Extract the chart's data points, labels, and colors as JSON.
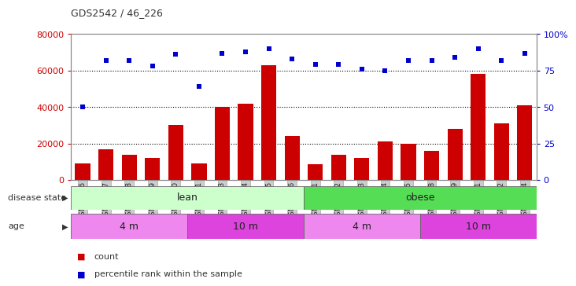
{
  "title": "GDS2542 / 46_226",
  "samples": [
    "GSM62956",
    "GSM62957",
    "GSM62958",
    "GSM62959",
    "GSM62960",
    "GSM63001",
    "GSM63003",
    "GSM63004",
    "GSM63005",
    "GSM63006",
    "GSM62951",
    "GSM62952",
    "GSM62953",
    "GSM62954",
    "GSM62955",
    "GSM63008",
    "GSM63009",
    "GSM63011",
    "GSM63012",
    "GSM63014"
  ],
  "counts": [
    9000,
    17000,
    14000,
    12000,
    30000,
    9000,
    40000,
    42000,
    63000,
    24000,
    8500,
    14000,
    12000,
    21000,
    20000,
    16000,
    28000,
    58000,
    31000,
    41000
  ],
  "percentiles": [
    50,
    82,
    82,
    78,
    86,
    64,
    87,
    88,
    90,
    83,
    79,
    79,
    76,
    75,
    82,
    82,
    84,
    90,
    82,
    87
  ],
  "bar_color": "#cc0000",
  "dot_color": "#0000cc",
  "left_ylim": [
    0,
    80000
  ],
  "left_yticks": [
    0,
    20000,
    40000,
    60000,
    80000
  ],
  "right_ylim": [
    0,
    100
  ],
  "right_yticks": [
    0,
    25,
    50,
    75,
    100
  ],
  "disease_state_groups": [
    {
      "label": "lean",
      "start": 0,
      "end": 10,
      "color": "#ccffcc"
    },
    {
      "label": "obese",
      "start": 10,
      "end": 20,
      "color": "#55dd55"
    }
  ],
  "age_groups": [
    {
      "label": "4 m",
      "start": 0,
      "end": 5,
      "color": "#ee88ee"
    },
    {
      "label": "10 m",
      "start": 5,
      "end": 10,
      "color": "#dd44dd"
    },
    {
      "label": "4 m",
      "start": 10,
      "end": 15,
      "color": "#ee88ee"
    },
    {
      "label": "10 m",
      "start": 15,
      "end": 20,
      "color": "#dd44dd"
    }
  ],
  "disease_label": "disease state",
  "age_label": "age",
  "legend_count_label": "count",
  "legend_pct_label": "percentile rank within the sample",
  "left_axis_color": "#cc0000",
  "right_axis_color": "#0000cc",
  "background_color": "#ffffff",
  "tick_bg_color": "#cccccc"
}
